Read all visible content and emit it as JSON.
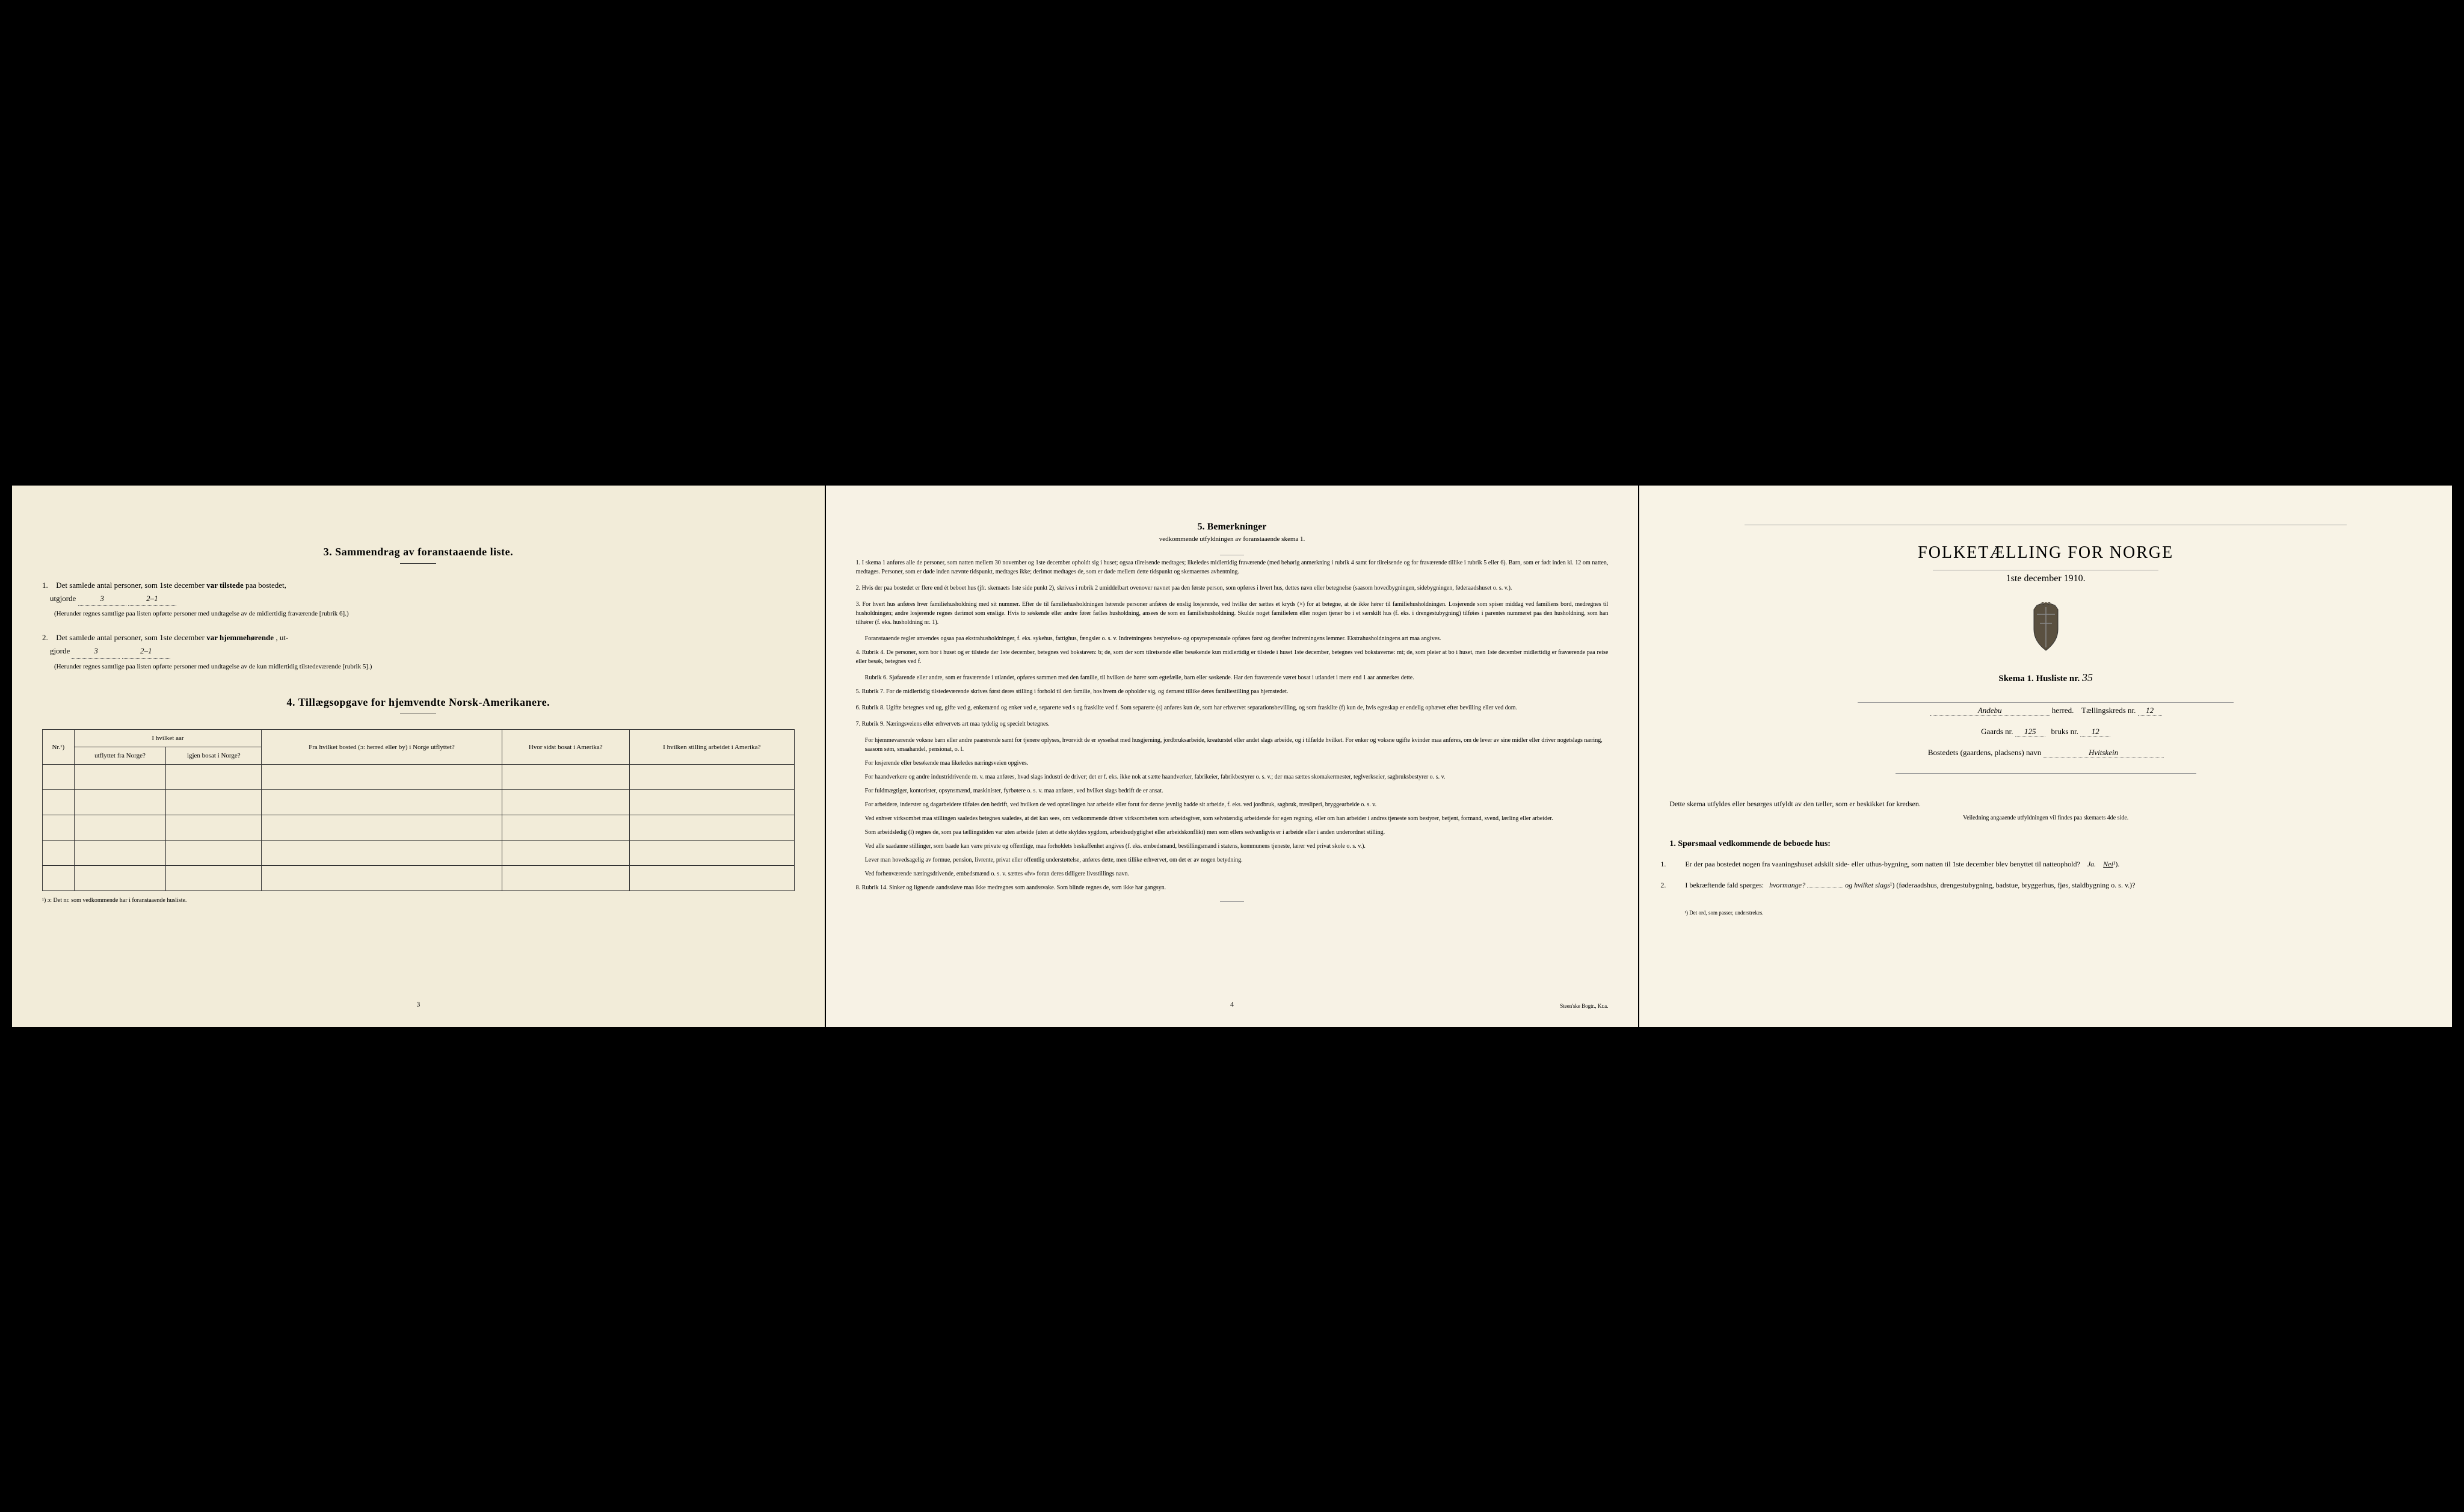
{
  "colors": {
    "page_left": "#f2ecd9",
    "page_middle": "#f7f2e5",
    "page_right": "#f8f3e6",
    "text": "#2a2a2a",
    "border": "#333333",
    "dotted": "#666666"
  },
  "left_page": {
    "section3": {
      "title": "3.   Sammendrag av foranstaaende liste.",
      "item1": {
        "num": "1.",
        "text_before": "Det samlede antal personer, som 1ste december",
        "text_bold": "var tilstede",
        "text_after": "paa bostedet,",
        "line2": "utgjorde",
        "value1": "3",
        "value2": "2–1",
        "note": "(Herunder regnes samtlige paa listen opførte personer med undtagelse av de midlertidig fraværende [rubrik 6].)"
      },
      "item2": {
        "num": "2.",
        "text_before": "Det samlede antal personer, som 1ste december",
        "text_bold": "var hjemmehørende",
        "text_after": ", ut-",
        "line2": "gjorde",
        "value1": "3",
        "value2": "2–1",
        "note": "(Herunder regnes samtlige paa listen opførte personer med undtagelse av de kun midlertidig tilstedeværende [rubrik 5].)"
      }
    },
    "section4": {
      "title": "4.  Tillægsopgave for hjemvendte Norsk-Amerikanere.",
      "table": {
        "headers": {
          "col1": "Nr.¹)",
          "col2_top": "I hvilket aar",
          "col2a": "utflyttet fra Norge?",
          "col2b": "igjen bosat i Norge?",
          "col3": "Fra hvilket bosted (ɔ: herred eller by) i Norge utflyttet?",
          "col4": "Hvor sidst bosat i Amerika?",
          "col5": "I hvilken stilling arbeidet i Amerika?"
        },
        "rows": 5
      },
      "footnote": "¹) ɔ: Det nr. som vedkommende har i foranstaaende husliste."
    },
    "page_number": "3"
  },
  "middle_page": {
    "title": "5.   Bemerkninger",
    "subtitle": "vedkommende utfyldningen av foranstaaende skema 1.",
    "remarks": [
      {
        "num": "1.",
        "text": "I skema 1 anføres alle de personer, som natten mellem 30 november og 1ste december opholdt sig i huset; ogsaa tilreisende medtages; likeledes midlertidig fraværende (med behørig anmerkning i rubrik 4 samt for tilreisende og for fraværende tillike i rubrik 5 eller 6). Barn, som er født inden kl. 12 om natten, medtages. Personer, som er døde inden nævnte tidspunkt, medtages ikke; derimot medtages de, som er døde mellem dette tidspunkt og skemaernes avhentning."
      },
      {
        "num": "2.",
        "text": "Hvis der paa bostedet er flere end ét beboet hus (jfr. skemaets 1ste side punkt 2), skrives i rubrik 2 umiddelbart ovenover navnet paa den første person, som opføres i hvert hus, dettes navn eller betegnelse (saasom hovedbygningen, sidebygningen, føderaadshuset o. s. v.)."
      },
      {
        "num": "3.",
        "text": "For hvert hus anføres hver familiehusholdning med sit nummer. Efter de til familiehusholdningen hørende personer anføres de enslig losjerende, ved hvilke der sættes et kryds (×) for at betegne, at de ikke hører til familiehusholdningen. Losjerende som spiser middag ved familiens bord, medregnes til husholdningen; andre losjerende regnes derimot som enslige. Hvis to søskende eller andre fører fælles husholdning, ansees de som en familiehusholdning. Skulde noget familielem eller nogen tjener bo i et særskilt hus (f. eks. i drengestubygning) tilføies i parentes nummeret paa den husholdning, som han tilhører (f. eks. husholdning nr. 1).",
        "sub": "Foranstaaende regler anvendes ogsaa paa ekstrahusholdninger, f. eks. sykehus, fattighus, fængsler o. s. v. Indretningens bestyrelses- og opsynspersonale opføres først og derefter indretningens lemmer. Ekstrahusholdningens art maa angives."
      },
      {
        "num": "4.",
        "text": "Rubrik 4. De personer, som bor i huset og er tilstede der 1ste december, betegnes ved bokstaven: b; de, som der som tilreisende eller besøkende kun midlertidig er tilstede i huset 1ste december, betegnes ved bokstaverne: mt; de, som pleier at bo i huset, men 1ste december midlertidig er fraværende paa reise eller besøk, betegnes ved f.",
        "sub": "Rubrik 6. Sjøfarende eller andre, som er fraværende i utlandet, opføres sammen med den familie, til hvilken de hører som egtefælle, barn eller søskende. Har den fraværende været bosat i utlandet i mere end 1 aar anmerkes dette."
      },
      {
        "num": "5.",
        "text": "Rubrik 7. For de midlertidig tilstedeværende skrives først deres stilling i forhold til den familie, hos hvem de opholder sig, og dernæst tillike deres familiestilling paa hjemstedet."
      },
      {
        "num": "6.",
        "text": "Rubrik 8. Ugifte betegnes ved ug, gifte ved g, enkemænd og enker ved e, separerte ved s og fraskilte ved f. Som separerte (s) anføres kun de, som har erhvervet separationsbevilling, og som fraskilte (f) kun de, hvis egteskap er endelig ophævet efter bevilling eller ved dom."
      },
      {
        "num": "7.",
        "text": "Rubrik 9. Næringsveiens eller erhvervets art maa tydelig og specielt betegnes.",
        "subs": [
          "For hjemmeværende voksne barn eller andre paarørende samt for tjenere oplyses, hvorvidt de er sysselsat med husgjerning, jordbruksarbeide, kreaturstel eller andet slags arbeide, og i tilfælde hvilket. For enker og voksne ugifte kvinder maa anføres, om de lever av sine midler eller driver nogetslags næring, saasom søm, smaahandel, pensionat, o. l.",
          "For losjerende eller besøkende maa likeledes næringsveien opgives.",
          "For haandverkere og andre industridrivende m. v. maa anføres, hvad slags industri de driver; det er f. eks. ikke nok at sætte haandverker, fabrikeier, fabrikbestyrer o. s. v.; der maa sættes skomakermester, teglverkseier, sagbruksbestyrer o. s. v.",
          "For fuldmægtiger, kontorister, opsynsmænd, maskinister, fyrbøtere o. s. v. maa anføres, ved hvilket slags bedrift de er ansat.",
          "For arbeidere, inderster og dagarbeidere tilføies den bedrift, ved hvilken de ved optællingen har arbeide eller forut for denne jevnlig hadde sit arbeide, f. eks. ved jordbruk, sagbruk, træsliperi, bryggearbeide o. s. v.",
          "Ved enhver virksomhet maa stillingen saaledes betegnes saaledes, at det kan sees, om vedkommende driver virksomheten som arbeidsgiver, som selvstændig arbeidende for egen regning, eller om han arbeider i andres tjeneste som bestyrer, betjent, formand, svend, lærling eller arbeider.",
          "Som arbeidsledig (l) regnes de, som paa tællingstiden var uten arbeide (uten at dette skyldes sygdom, arbeidsudygtighet eller arbeidskonflikt) men som ellers sedvanligvis er i arbeide eller i anden underordnet stilling.",
          "Ved alle saadanne stillinger, som baade kan være private og offentlige, maa forholdets beskaffenhet angives (f. eks. embedsmand, bestillingsmand i statens, kommunens tjeneste, lærer ved privat skole o. s. v.).",
          "Lever man hovedsagelig av formue, pension, livrente, privat eller offentlig understøttelse, anføres dette, men tillike erhvervet, om det er av nogen betydning.",
          "Ved forhenværende næringsdrivende, embedsmænd o. s. v. sættes «fv» foran deres tidligere livsstillings navn."
        ]
      },
      {
        "num": "8.",
        "text": "Rubrik 14. Sinker og lignende aandssløve maa ikke medregnes som aandssvake. Som blinde regnes de, som ikke har gangsyn."
      }
    ],
    "page_number": "4",
    "publisher": "Steen'ske Bogtr., Kr.a."
  },
  "right_page": {
    "title": "FOLKETÆLLING FOR NORGE",
    "subtitle": "1ste december 1910.",
    "skema_label": "Skema 1.   Husliste nr.",
    "skema_value": "35",
    "herred_value": "Andebu",
    "herred_label": "herred.",
    "taelling_label": "Tællingskreds nr.",
    "taelling_value": "12",
    "gaards_label": "Gaards nr.",
    "gaards_value": "125",
    "bruks_label": "bruks nr.",
    "bruks_value": "12",
    "bosted_label": "Bostedets (gaardens, pladsens) navn",
    "bosted_value": "Hvitskein",
    "instruction": "Dette skema utfyldes eller besørges utfyldt av den tæller, som er beskikket for kredsen.",
    "instruction_sub": "Veiledning angaaende utfyldningen vil findes paa skemaets 4de side.",
    "questions_header": "1. Spørsmaal vedkommende de beboede hus:",
    "question1": {
      "num": "1.",
      "text": "Er der paa bostedet nogen fra vaaningshuset adskilt side- eller uthus-bygning, som natten til 1ste december blev benyttet til natteophold?",
      "ja": "Ja.",
      "nei": "Nei",
      "nei_sup": "¹)."
    },
    "question2": {
      "num": "2.",
      "text_before": "I bekræftende fald spørges:",
      "hvormange": "hvormange?",
      "og": "og",
      "hvilket": "hvilket slags",
      "sup": "¹)",
      "text_after": "(føderaadshus, drengestubygning, badstue, bryggerhus, fjøs, staldbygning o. s. v.)?"
    },
    "footnote": "¹) Det ord, som passer, understrekes."
  }
}
